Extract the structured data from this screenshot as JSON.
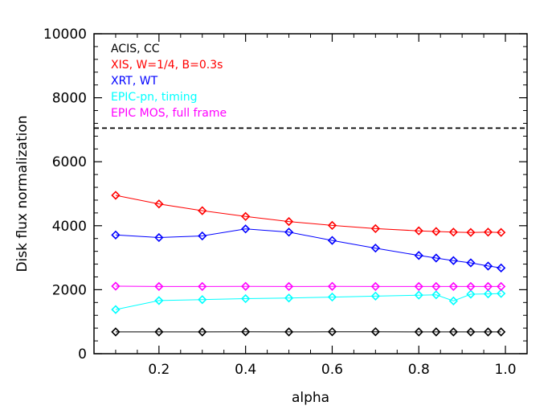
{
  "chart_data": {
    "type": "line",
    "title": "",
    "xlabel": "alpha",
    "ylabel": "Disk flux normalization",
    "xlim": [
      0.05,
      1.05
    ],
    "ylim": [
      0,
      10000
    ],
    "xticks": [
      0.2,
      0.4,
      0.6,
      0.8,
      1.0
    ],
    "xtick_labels": [
      "0.2",
      "0.4",
      "0.6",
      "0.8",
      "1.0"
    ],
    "yticks": [
      0,
      2000,
      4000,
      6000,
      8000,
      10000
    ],
    "ytick_labels": [
      "0",
      "2000",
      "4000",
      "6000",
      "8000",
      "10000"
    ],
    "x": [
      0.1,
      0.2,
      0.3,
      0.4,
      0.5,
      0.6,
      0.7,
      0.8,
      0.84,
      0.88,
      0.92,
      0.96,
      0.99
    ],
    "legend_position": "top-left",
    "marker": "diamond",
    "grid": false,
    "reference_line": {
      "y": 7050,
      "style": "dashed",
      "color": "#000000"
    },
    "series": [
      {
        "name": "ACIS, CC",
        "color": "#000000",
        "values": [
          680,
          680,
          680,
          685,
          680,
          685,
          685,
          680,
          680,
          680,
          680,
          680,
          680
        ]
      },
      {
        "name": "XIS, W=1/4, B=0.3s",
        "color": "#ff0000",
        "values": [
          4950,
          4680,
          4470,
          4290,
          4130,
          4010,
          3910,
          3840,
          3820,
          3800,
          3790,
          3800,
          3790
        ]
      },
      {
        "name": "XRT, WT",
        "color": "#0000ff",
        "values": [
          3710,
          3630,
          3680,
          3900,
          3800,
          3540,
          3300,
          3070,
          2990,
          2910,
          2840,
          2740,
          2680
        ]
      },
      {
        "name": "EPIC-pn, timing",
        "color": "#00ffff",
        "values": [
          1380,
          1660,
          1690,
          1720,
          1740,
          1770,
          1800,
          1830,
          1840,
          1650,
          1860,
          1870,
          1880
        ]
      },
      {
        "name": "EPIC MOS, full frame",
        "color": "#ff00ff",
        "values": [
          2110,
          2100,
          2100,
          2105,
          2100,
          2105,
          2100,
          2100,
          2100,
          2100,
          2100,
          2100,
          2100
        ]
      }
    ]
  }
}
